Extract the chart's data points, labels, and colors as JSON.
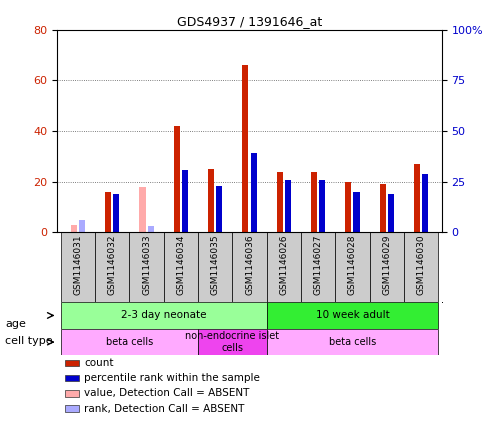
{
  "title": "GDS4937 / 1391646_at",
  "samples": [
    "GSM1146031",
    "GSM1146032",
    "GSM1146033",
    "GSM1146034",
    "GSM1146035",
    "GSM1146036",
    "GSM1146026",
    "GSM1146027",
    "GSM1146028",
    "GSM1146029",
    "GSM1146030"
  ],
  "count": [
    3,
    16,
    18,
    42,
    25,
    66,
    24,
    24,
    20,
    19,
    27
  ],
  "rank_pct": [
    6,
    19,
    3,
    31,
    23,
    39,
    26,
    26,
    20,
    19,
    29
  ],
  "absent_count": [
    true,
    false,
    true,
    false,
    false,
    false,
    false,
    false,
    false,
    false,
    false
  ],
  "absent_rank": [
    true,
    false,
    true,
    false,
    false,
    false,
    false,
    false,
    false,
    false,
    false
  ],
  "ylim_left": [
    0,
    80
  ],
  "ylim_right": [
    0,
    100
  ],
  "yticks_left": [
    0,
    20,
    40,
    60,
    80
  ],
  "ytick_labels_left": [
    "0",
    "20",
    "40",
    "60",
    "80"
  ],
  "yticks_right": [
    0,
    25,
    50,
    75,
    100
  ],
  "ytick_labels_right": [
    "0",
    "25",
    "50",
    "75",
    "100%"
  ],
  "color_count": "#cc2200",
  "color_rank": "#0000cc",
  "color_absent_count": "#ffaaaa",
  "color_absent_rank": "#aaaaff",
  "age_groups": [
    {
      "label": "2-3 day neonate",
      "start": 0,
      "end": 6,
      "color": "#99ff99"
    },
    {
      "label": "10 week adult",
      "start": 6,
      "end": 11,
      "color": "#33ee33"
    }
  ],
  "cell_type_groups": [
    {
      "label": "beta cells",
      "start": 0,
      "end": 4,
      "color": "#ffaaff"
    },
    {
      "label": "non-endocrine islet\ncells",
      "start": 4,
      "end": 6,
      "color": "#ee44ee"
    },
    {
      "label": "beta cells",
      "start": 6,
      "end": 11,
      "color": "#ffaaff"
    }
  ],
  "bar_width": 0.18,
  "bg_color": "#ffffff",
  "plot_bg": "#ffffff",
  "grid_color": "#555555",
  "tick_area_color": "#cccccc"
}
